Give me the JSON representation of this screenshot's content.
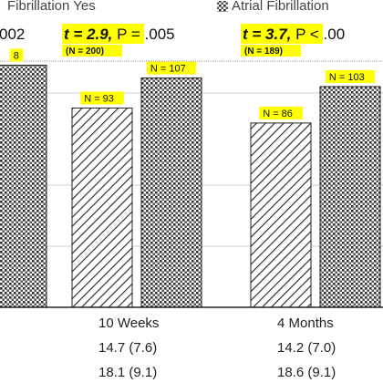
{
  "chart_data": {
    "type": "bar",
    "ylim": [
      0,
      115
    ],
    "legend": {
      "placement": "top",
      "entries": [
        {
          "label": "Fibrillation Yes",
          "pattern": "hatch"
        },
        {
          "label": "Atrial Fibrillation",
          "pattern": "dots"
        }
      ]
    },
    "categories": [
      "",
      "10 Weeks",
      "4 Months"
    ],
    "stats": [
      {
        "t_text": "",
        "p_text": "002",
        "n_text": "",
        "highlight": false
      },
      {
        "t_text": "t = 2.9,",
        "p_text": " P = .005",
        "n_text": "(N = 200)",
        "highlight": true
      },
      {
        "t_text": "t = 3.7,",
        "p_text": " P < .00",
        "n_text": "(N = 189)",
        "highlight": true
      }
    ],
    "series": [
      {
        "pattern": "hatch",
        "values": [
          null,
          93,
          86
        ],
        "n_labels": [
          "",
          "N = 93",
          "N = 86"
        ]
      },
      {
        "pattern": "dots",
        "values": [
          113,
          107,
          103
        ],
        "n_labels": [
          "8",
          "N = 107",
          "N = 103"
        ]
      }
    ],
    "rows": [
      [
        "",
        "14.7 (7.6)",
        "14.2 (7.0)"
      ],
      [
        "",
        "18.1 (9.1)",
        "18.6 (9.1)"
      ]
    ],
    "grid": true,
    "colors": {
      "highlight": "#ffff00",
      "hatch_line": "#222222",
      "dots_fill": "#444444"
    }
  }
}
